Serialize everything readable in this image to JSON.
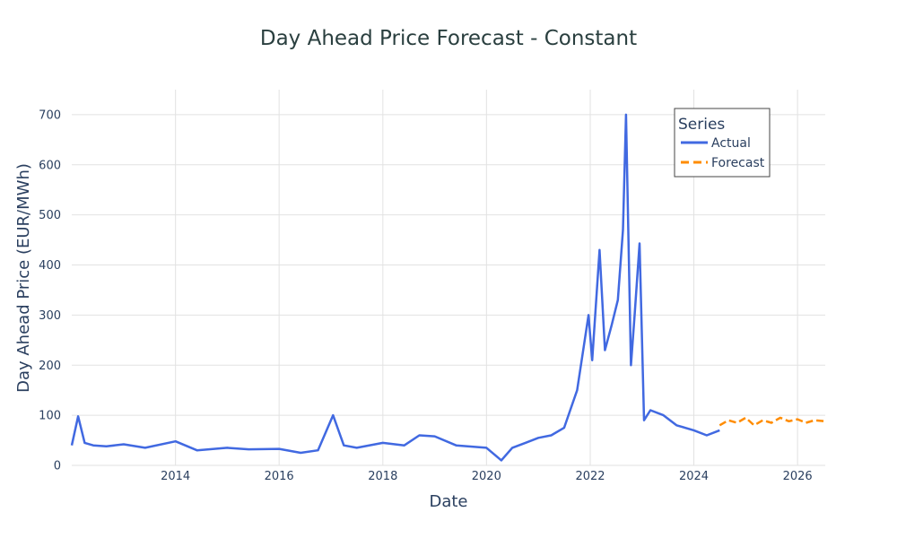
{
  "chart_data": {
    "type": "line",
    "title": "Day Ahead Price Forecast - Constant",
    "xlabel": "Date",
    "ylabel": "Day Ahead Price (EUR/MWh)",
    "xlim": [
      "2012-01-01",
      "2026-07-15"
    ],
    "ylim": [
      0,
      750
    ],
    "x_ticks": [
      "2014",
      "2016",
      "2018",
      "2020",
      "2022",
      "2024",
      "2026"
    ],
    "y_ticks": [
      0,
      100,
      200,
      300,
      400,
      500,
      600,
      700
    ],
    "grid": true,
    "legend": {
      "title": "Series",
      "placement": "top-right"
    },
    "series": [
      {
        "name": "Actual",
        "color": "#4169e1",
        "dash": "solid",
        "x": [
          "2012-01-01",
          "2012-02-15",
          "2012-04-01",
          "2012-06-01",
          "2012-09-01",
          "2013-01-01",
          "2013-06-01",
          "2014-01-01",
          "2014-06-01",
          "2015-01-01",
          "2015-06-01",
          "2016-01-01",
          "2016-06-01",
          "2016-10-01",
          "2017-01-15",
          "2017-04-01",
          "2017-07-01",
          "2018-01-01",
          "2018-06-01",
          "2018-09-15",
          "2019-01-01",
          "2019-06-01",
          "2020-01-01",
          "2020-04-15",
          "2020-07-01",
          "2020-10-01",
          "2021-01-01",
          "2021-04-01",
          "2021-07-01",
          "2021-10-01",
          "2021-12-20",
          "2022-01-15",
          "2022-03-08",
          "2022-04-15",
          "2022-06-01",
          "2022-07-15",
          "2022-08-20",
          "2022-09-10",
          "2022-10-15",
          "2022-11-10",
          "2022-12-15",
          "2023-01-15",
          "2023-03-01",
          "2023-06-01",
          "2023-09-01",
          "2024-01-01",
          "2024-04-01",
          "2024-07-01"
        ],
        "y": [
          40,
          98,
          45,
          40,
          38,
          42,
          35,
          48,
          30,
          35,
          32,
          33,
          25,
          30,
          100,
          40,
          35,
          45,
          40,
          60,
          58,
          40,
          35,
          10,
          35,
          45,
          55,
          60,
          75,
          150,
          300,
          210,
          430,
          230,
          280,
          330,
          470,
          700,
          200,
          300,
          443,
          90,
          110,
          100,
          80,
          70,
          60,
          70
        ]
      },
      {
        "name": "Forecast",
        "color": "#ff8c00",
        "dash": "dash",
        "x": [
          "2024-07-01",
          "2024-09-01",
          "2024-11-01",
          "2025-01-01",
          "2025-03-01",
          "2025-05-01",
          "2025-07-01",
          "2025-09-01",
          "2025-11-01",
          "2026-01-01",
          "2026-03-01",
          "2026-05-01",
          "2026-07-15"
        ],
        "y": [
          80,
          90,
          85,
          95,
          80,
          90,
          85,
          95,
          88,
          92,
          85,
          90,
          88
        ]
      }
    ]
  }
}
